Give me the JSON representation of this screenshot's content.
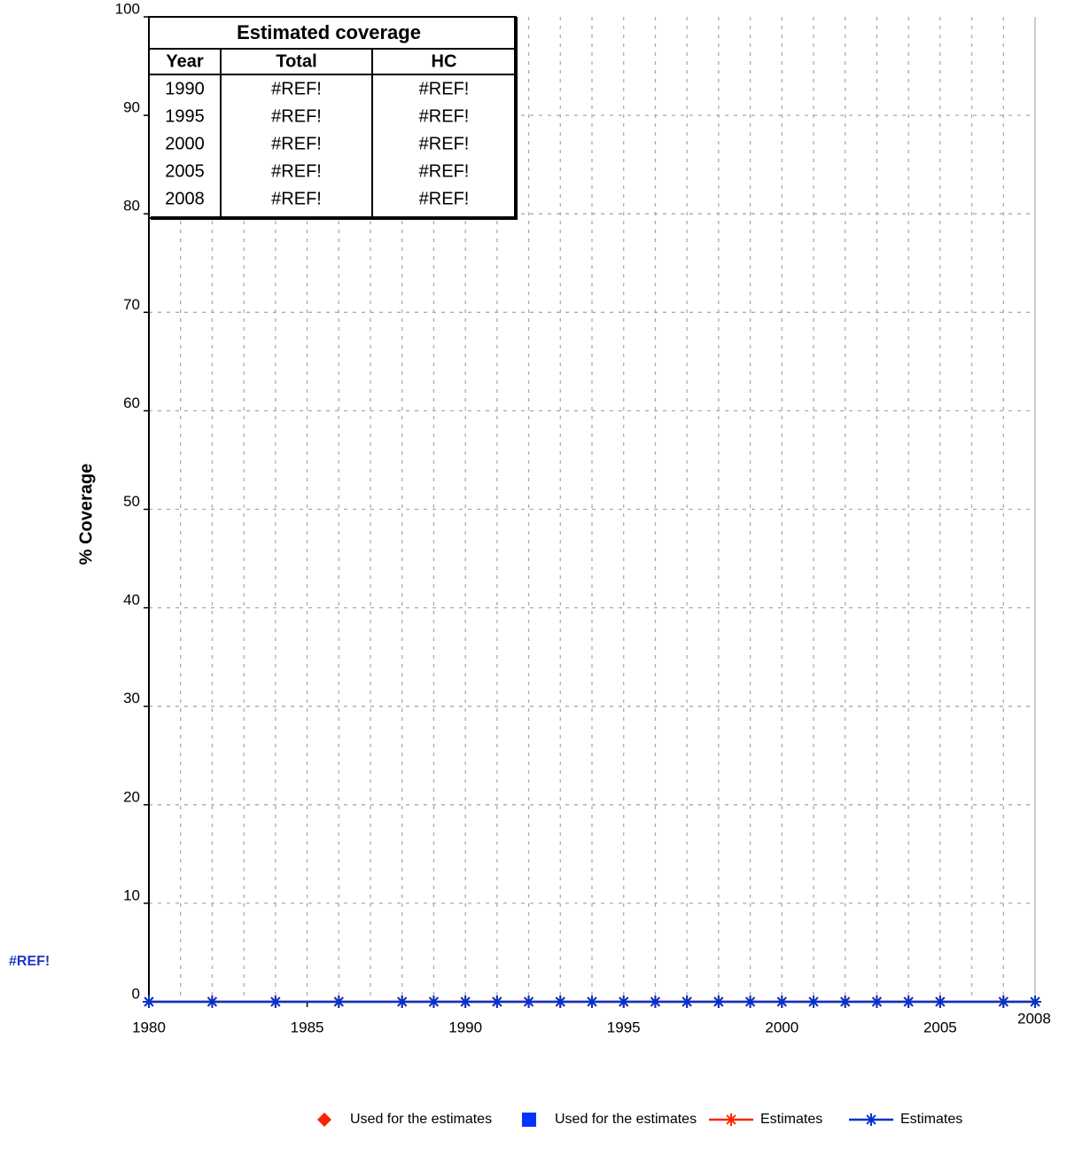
{
  "chart_data": {
    "type": "line",
    "ylabel": "% Coverage",
    "xlim": [
      1980,
      2008
    ],
    "xticks": [
      1980,
      1985,
      1990,
      1995,
      2000,
      2005,
      2008
    ],
    "xgrid": [
      1981,
      1982,
      1983,
      1984,
      1985,
      1986,
      1987,
      1988,
      1989,
      1990,
      1991,
      1992,
      1993,
      1994,
      1995,
      1996,
      1997,
      1998,
      1999,
      2000,
      2001,
      2002,
      2003,
      2004,
      2005,
      2006,
      2007
    ],
    "ylim": [
      0,
      100
    ],
    "yticks": [
      0,
      10,
      20,
      30,
      40,
      50,
      60,
      70,
      80,
      90,
      100
    ],
    "grid": true,
    "annotation": "#REF!",
    "series": [
      {
        "name": "Used for the estimates",
        "color": "#ff2200",
        "marker": "diamond",
        "x": [],
        "values": []
      },
      {
        "name": "Used for the estimates",
        "color": "#0033ff",
        "marker": "square",
        "x": [],
        "values": []
      },
      {
        "name": "Estimates",
        "color": "#ff2200",
        "marker": "asterisk",
        "x": [
          1980,
          1982,
          1984,
          1986,
          1988,
          1989,
          1990,
          1991,
          1992,
          1993,
          1994,
          1995,
          1996,
          1997,
          1998,
          1999,
          2000,
          2001,
          2002,
          2003,
          2004,
          2005,
          2007,
          2008
        ],
        "values": [
          0,
          0,
          0,
          0,
          0,
          0,
          0,
          0,
          0,
          0,
          0,
          0,
          0,
          0,
          0,
          0,
          0,
          0,
          0,
          0,
          0,
          0,
          0,
          0
        ]
      },
      {
        "name": "Estimates",
        "color": "#0033cc",
        "marker": "asterisk",
        "x": [
          1980,
          1982,
          1984,
          1986,
          1988,
          1989,
          1990,
          1991,
          1992,
          1993,
          1994,
          1995,
          1996,
          1997,
          1998,
          1999,
          2000,
          2001,
          2002,
          2003,
          2004,
          2005,
          2007,
          2008
        ],
        "values": [
          0,
          0,
          0,
          0,
          0,
          0,
          0,
          0,
          0,
          0,
          0,
          0,
          0,
          0,
          0,
          0,
          0,
          0,
          0,
          0,
          0,
          0,
          0,
          0
        ]
      }
    ]
  },
  "table": {
    "title": "Estimated coverage",
    "columns": [
      "Year",
      "Total",
      "HC"
    ],
    "rows": [
      [
        "1990",
        "#REF!",
        "#REF!"
      ],
      [
        "1995",
        "#REF!",
        "#REF!"
      ],
      [
        "2000",
        "#REF!",
        "#REF!"
      ],
      [
        "2005",
        "#REF!",
        "#REF!"
      ],
      [
        "2008",
        "#REF!",
        "#REF!"
      ]
    ]
  }
}
